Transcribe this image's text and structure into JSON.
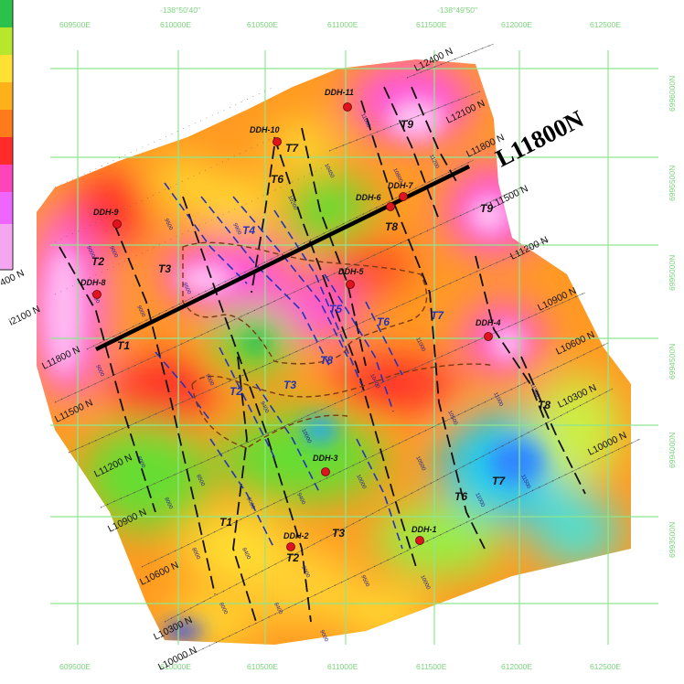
{
  "map": {
    "highlight_line_label": "L11800N",
    "colors": {
      "magenta": "#ff55dd",
      "pink": "#ff99ee",
      "red": "#ff2a2a",
      "orange": "#ff8c1a",
      "yellow": "#ffe033",
      "green": "#66dd33",
      "cyan": "#22ccee",
      "blue": "#2255ff",
      "grid": "#8fe58f",
      "trend_blue": "#2233bb",
      "highlight": "#000000"
    },
    "top_coordinates": [
      "-138°50'40\"",
      "-138°49'50\""
    ],
    "easting_labels_top": [
      "609500E",
      "610000E",
      "610500E",
      "611000E",
      "611500E",
      "612000E",
      "612500E"
    ],
    "easting_labels_bottom": [
      "609500E",
      "610000E",
      "610500E",
      "611000E",
      "611500E",
      "612000E",
      "612500E"
    ],
    "northing_labels": [
      "6996000N",
      "6995500N",
      "6995000N",
      "6994500N",
      "6994000N",
      "6993500N"
    ],
    "survey_lines": [
      {
        "label": "L12400 N"
      },
      {
        "label": "L12100 N"
      },
      {
        "label": "L11800 N"
      },
      {
        "label": "L11500 N"
      },
      {
        "label": "L11200 N"
      },
      {
        "label": "L10900 N"
      },
      {
        "label": "L10600 N"
      },
      {
        "label": "L10300 N"
      },
      {
        "label": "L10000 N"
      }
    ],
    "left_line_labels": [
      {
        "label": "400 N"
      },
      {
        "label": "i2100 N"
      },
      {
        "label": "L11800 N"
      },
      {
        "label": "L11500 N"
      },
      {
        "label": "L11200 N"
      },
      {
        "label": "L10900 N"
      },
      {
        "label": "L10600 N"
      },
      {
        "label": "L10300 N"
      },
      {
        "label": "L10000 N"
      }
    ],
    "drill_holes": [
      "DDH-11",
      "DDH-10",
      "DDH-9",
      "DDH-8",
      "DDH-7",
      "DDH-6",
      "DDH-5",
      "DDH-4",
      "DDH-3",
      "DDH-2",
      "DDH-1"
    ],
    "trend_labels": [
      "T9",
      "T7",
      "T6",
      "T8",
      "T9",
      "T4",
      "T2",
      "T3",
      "T5",
      "T6",
      "T7",
      "T1",
      "T8",
      "T2",
      "T3",
      "T7",
      "T6",
      "T1",
      "T3",
      "T2",
      "T8"
    ]
  }
}
